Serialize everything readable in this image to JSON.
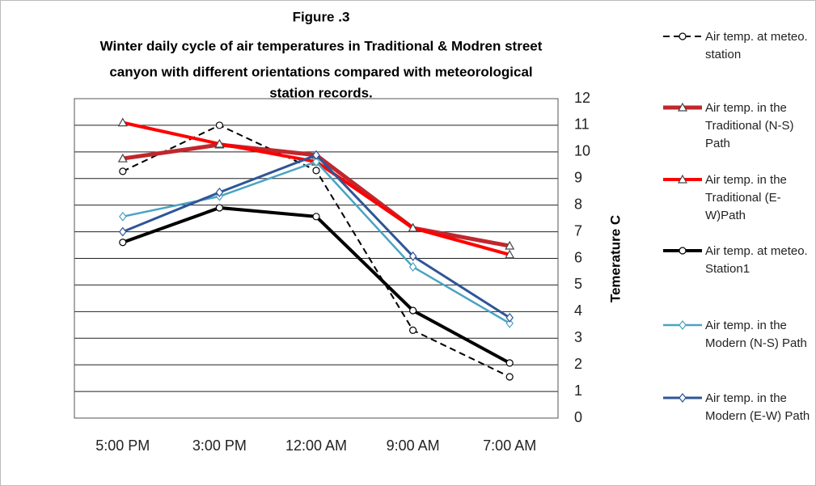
{
  "chart_data": {
    "type": "line",
    "title_lines": [
      "Figure .3",
      "Winter daily cycle of air temperatures in Traditional & Modren street",
      "canyon  with different orientations  compared with meteorological",
      "station records."
    ],
    "y_label": "Temerature C",
    "categories": [
      "5:00 PM",
      "3:00 PM",
      "12:00 AM",
      "9:00 AM",
      "7:00 AM"
    ],
    "ylim": [
      0,
      12
    ],
    "yticks": [
      0,
      1,
      2,
      3,
      4,
      5,
      6,
      7,
      8,
      9,
      10,
      11,
      12
    ],
    "grid": true,
    "y_axis_side": "right",
    "legend": "right",
    "series": [
      {
        "name": "Air temp. at meteo. station",
        "color": "#000000",
        "width": 2,
        "dash": true,
        "marker": "circle",
        "values": [
          9.27,
          11.0,
          9.3,
          3.3,
          1.55
        ]
      },
      {
        "name": "Air temp. in the Traditional (N-S) Path",
        "color": "#c0272d",
        "width": 5,
        "dash": false,
        "marker": "triangle",
        "values": [
          9.75,
          10.27,
          9.88,
          7.14,
          6.47
        ]
      },
      {
        "name": "Air temp. in the Traditional (E-W)Path",
        "color": "#ff0000",
        "width": 4,
        "dash": false,
        "marker": "triangle",
        "values": [
          11.1,
          10.3,
          9.63,
          7.14,
          6.14
        ]
      },
      {
        "name": "Air temp. at meteo. Station1",
        "color": "#000000",
        "width": 4,
        "dash": false,
        "marker": "circle",
        "values": [
          6.6,
          7.9,
          7.57,
          4.04,
          2.07
        ]
      },
      {
        "name": "Air temp. in the Modern (N-S) Path",
        "color": "#4aa3c3",
        "width": 2.5,
        "dash": false,
        "marker": "diamond",
        "values": [
          7.57,
          8.33,
          9.63,
          5.68,
          3.56
        ]
      },
      {
        "name": "Air temp. in the Modern (E-W) Path",
        "color": "#2f5597",
        "width": 3,
        "dash": false,
        "marker": "diamond",
        "values": [
          7.0,
          8.48,
          9.88,
          6.08,
          3.77
        ]
      }
    ]
  }
}
